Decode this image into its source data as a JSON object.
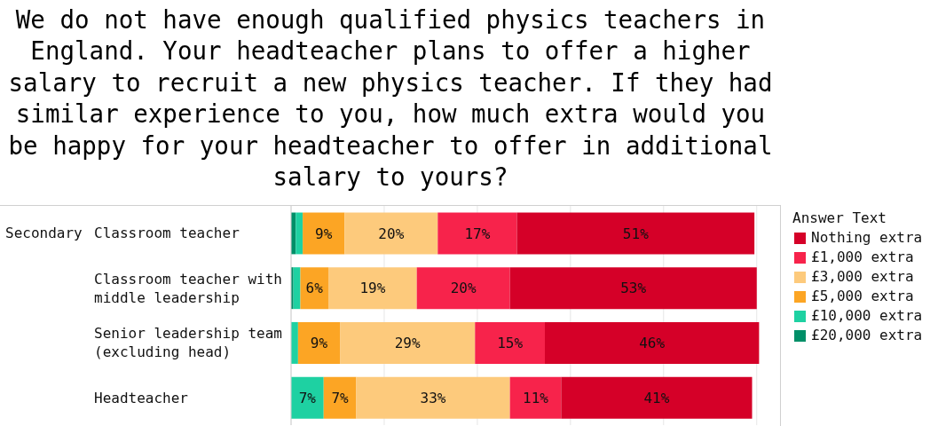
{
  "chart_data": {
    "type": "bar",
    "orientation": "horizontal",
    "stacked": true,
    "title": "We do not have enough qualified physics teachers in England. Your headteacher plans to offer a higher salary to recruit a new physics teacher. If they had similar experience to you, how much extra would you be happy for your headteacher to offer in additional salary to yours?",
    "ylabel": "Secondary",
    "legend_title": "Answer Text",
    "categories": [
      "Classroom teacher",
      "Classroom teacher with middle leadership",
      "Senior leadership team (excluding head)",
      "Headteacher"
    ],
    "series": [
      {
        "name": "£20,000 extra",
        "color": "#008f68",
        "values": [
          1,
          0.5,
          null,
          null
        ]
      },
      {
        "name": "£10,000 extra",
        "color": "#1ed1a2",
        "values": [
          1.5,
          1.5,
          1.5,
          7
        ],
        "value_labels": [
          null,
          null,
          null,
          "7%"
        ]
      },
      {
        "name": "£5,000 extra",
        "color": "#fca524",
        "values": [
          9,
          6,
          9,
          7
        ],
        "value_labels": [
          "9%",
          "6%",
          "9%",
          "7%"
        ]
      },
      {
        "name": "£3,000 extra",
        "color": "#fdca7c",
        "values": [
          20,
          19,
          29,
          33
        ],
        "value_labels": [
          "20%",
          "19%",
          "29%",
          "33%"
        ]
      },
      {
        "name": "£1,000 extra",
        "color": "#f7234b",
        "values": [
          17,
          20,
          15,
          11
        ],
        "value_labels": [
          "17%",
          "20%",
          "15%",
          "11%"
        ]
      },
      {
        "name": "Nothing extra",
        "color": "#d50028",
        "values": [
          51,
          53,
          46,
          41
        ],
        "value_labels": [
          "51%",
          "53%",
          "46%",
          "41%"
        ]
      }
    ],
    "xlim": [
      0,
      105
    ],
    "xticks": [
      {
        "value": 0,
        "label": null
      },
      {
        "value": 20,
        "label": null
      },
      {
        "value": 40,
        "label": null
      },
      {
        "value": 60,
        "label": null
      },
      {
        "value": 80,
        "label": null
      },
      {
        "value": 100,
        "label": null
      }
    ],
    "tick_labels": "y",
    "grid": "x",
    "legend": "right"
  }
}
